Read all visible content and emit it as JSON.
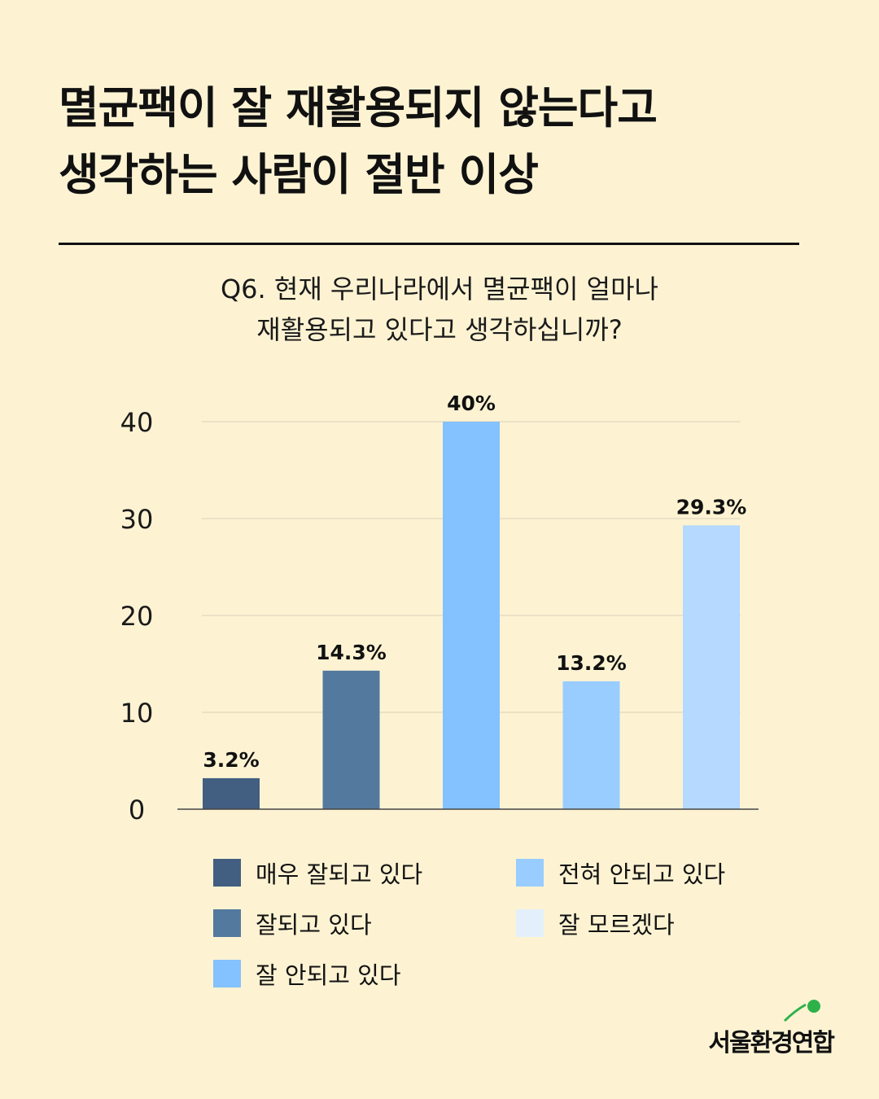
{
  "headline": {
    "line1": "멸균팩이 잘 재활용되지 않는다고",
    "line2": "생각하는 사람이 절반 이상"
  },
  "question": {
    "line1": "Q6. 현재 우리나라에서 멸균팩이 얼마나",
    "line2": "재활용되고 있다고 생각하십니까?"
  },
  "chart_data": {
    "type": "bar",
    "title": "",
    "xlabel": "",
    "ylabel": "",
    "ylim": [
      0,
      40
    ],
    "yticks": [
      0,
      10,
      20,
      30,
      40
    ],
    "grid": true,
    "categories": [
      "매우 잘되고 있다",
      "잘되고 있다",
      "잘 안되고 있다",
      "전혀 안되고 있다",
      "잘 모르겠다"
    ],
    "values": [
      3.2,
      14.3,
      40,
      13.2,
      29.3
    ],
    "value_labels": [
      "3.2%",
      "14.3%",
      "40%",
      "13.2%",
      "29.3%"
    ],
    "colors": [
      "#425e80",
      "#54799f",
      "#84c1ff",
      "#99ccff",
      "#b5d9ff"
    ],
    "legend_position": "bottom"
  },
  "legend": {
    "items": [
      {
        "label": "매우 잘되고 있다",
        "color": "#425e80"
      },
      {
        "label": "잘되고 있다",
        "color": "#54799f"
      },
      {
        "label": "잘 안되고 있다",
        "color": "#84c1ff"
      },
      {
        "label": "전혀 안되고 있다",
        "color": "#99ccff"
      },
      {
        "label": "잘 모르겠다",
        "color": "#e3f0fb"
      }
    ]
  },
  "logo": {
    "text": "서울환경연합"
  }
}
